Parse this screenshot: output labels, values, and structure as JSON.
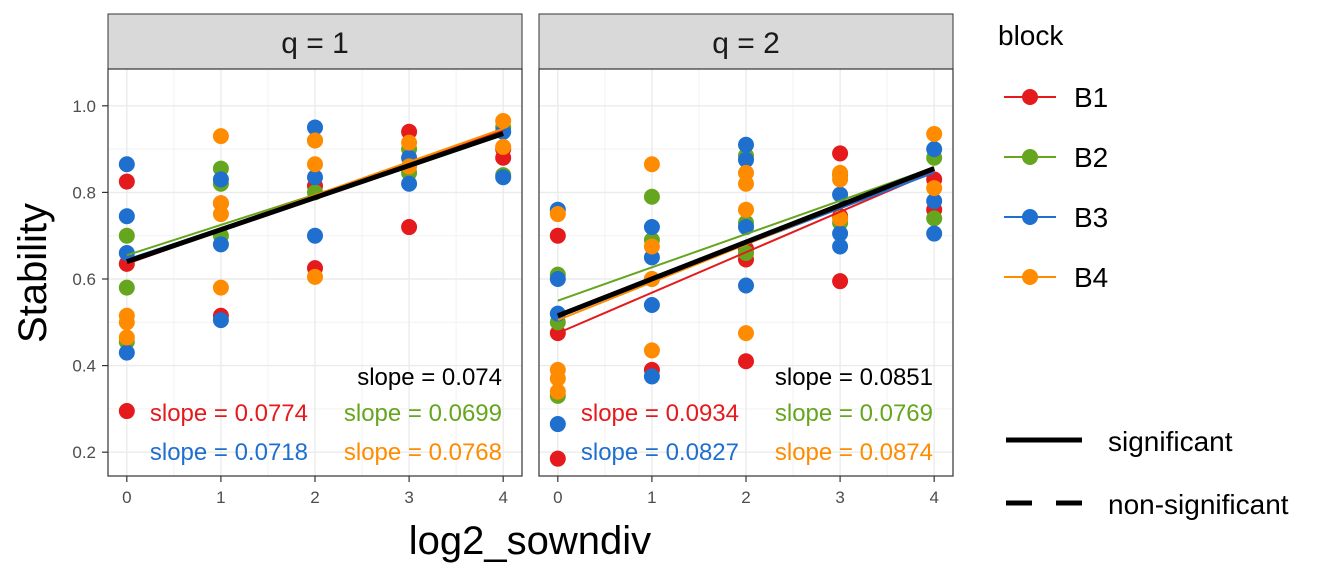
{
  "chart_data": {
    "type": "scatter",
    "xlabel": "log2_sowndiv",
    "ylabel": "Stability",
    "xlim": [
      -0.2,
      4.2
    ],
    "ylim": [
      0.145,
      1.085
    ],
    "x_ticks": [
      0,
      1,
      2,
      3,
      4
    ],
    "y_ticks": [
      0.2,
      0.4,
      0.6,
      0.8,
      1.0
    ],
    "x_tick_labels": [
      "0",
      "1",
      "2",
      "3",
      "4"
    ],
    "y_tick_labels": [
      "0.2",
      "0.4",
      "0.6",
      "0.8",
      "1.0"
    ],
    "grid": true,
    "legend": {
      "position": "right",
      "title": "block",
      "entries": [
        {
          "name": "B1",
          "color": "#e41a1c"
        },
        {
          "name": "B2",
          "color": "#66a61e"
        },
        {
          "name": "B3",
          "color": "#1f6fcf"
        },
        {
          "name": "B4",
          "color": "#ff8c00"
        }
      ],
      "linetype_entries": [
        "significant",
        "non-significant"
      ]
    },
    "panels": [
      {
        "strip": "q = 1",
        "overall": {
          "slope_label": "slope = 0.074",
          "intercept": 0.64,
          "slope": 0.074
        },
        "series": [
          {
            "block": "B1",
            "slope_label": "slope = 0.0774",
            "intercept": 0.635,
            "slope": 0.0774,
            "points": [
              [
                0,
                0.825
              ],
              [
                0,
                0.635
              ],
              [
                0,
                0.295
              ],
              [
                1,
                0.775
              ],
              [
                1,
                0.515
              ],
              [
                2,
                0.815
              ],
              [
                2,
                0.625
              ],
              [
                3,
                0.94
              ],
              [
                3,
                0.72
              ],
              [
                4,
                0.9
              ],
              [
                4,
                0.88
              ]
            ]
          },
          {
            "block": "B2",
            "slope_label": "slope = 0.0699",
            "intercept": 0.655,
            "slope": 0.0699,
            "points": [
              [
                0,
                0.7
              ],
              [
                0,
                0.58
              ],
              [
                0,
                0.455
              ],
              [
                1,
                0.855
              ],
              [
                1,
                0.82
              ],
              [
                1,
                0.7
              ],
              [
                2,
                0.92
              ],
              [
                2,
                0.8
              ],
              [
                3,
                0.9
              ],
              [
                3,
                0.845
              ],
              [
                4,
                0.95
              ],
              [
                4,
                0.84
              ]
            ]
          },
          {
            "block": "B3",
            "slope_label": "slope = 0.0718",
            "intercept": 0.645,
            "slope": 0.0718,
            "points": [
              [
                0,
                0.865
              ],
              [
                0,
                0.745
              ],
              [
                0,
                0.66
              ],
              [
                0,
                0.43
              ],
              [
                1,
                0.83
              ],
              [
                1,
                0.68
              ],
              [
                1,
                0.505
              ],
              [
                2,
                0.95
              ],
              [
                2,
                0.835
              ],
              [
                2,
                0.7
              ],
              [
                3,
                0.88
              ],
              [
                3,
                0.82
              ],
              [
                4,
                0.94
              ],
              [
                4,
                0.835
              ]
            ]
          },
          {
            "block": "B4",
            "slope_label": "slope = 0.0768",
            "intercept": 0.64,
            "slope": 0.0768,
            "points": [
              [
                0,
                0.515
              ],
              [
                0,
                0.5
              ],
              [
                0,
                0.465
              ],
              [
                1,
                0.93
              ],
              [
                1,
                0.775
              ],
              [
                1,
                0.75
              ],
              [
                1,
                0.58
              ],
              [
                2,
                0.92
              ],
              [
                2,
                0.865
              ],
              [
                2,
                0.605
              ],
              [
                3,
                0.915
              ],
              [
                3,
                0.86
              ],
              [
                4,
                0.965
              ],
              [
                4,
                0.905
              ]
            ]
          }
        ]
      },
      {
        "strip": "q = 2",
        "overall": {
          "slope_label": "slope = 0.0851",
          "intercept": 0.515,
          "slope": 0.0851
        },
        "series": [
          {
            "block": "B1",
            "slope_label": "slope = 0.0934",
            "intercept": 0.475,
            "slope": 0.0934,
            "points": [
              [
                0,
                0.7
              ],
              [
                0,
                0.475
              ],
              [
                0,
                0.185
              ],
              [
                1,
                0.39
              ],
              [
                2,
                0.67
              ],
              [
                2,
                0.645
              ],
              [
                2,
                0.41
              ],
              [
                3,
                0.89
              ],
              [
                3,
                0.745
              ],
              [
                3,
                0.595
              ],
              [
                4,
                0.83
              ],
              [
                4,
                0.76
              ]
            ]
          },
          {
            "block": "B2",
            "slope_label": "slope = 0.0769",
            "intercept": 0.55,
            "slope": 0.0769,
            "points": [
              [
                0,
                0.61
              ],
              [
                0,
                0.5
              ],
              [
                0,
                0.33
              ],
              [
                1,
                0.79
              ],
              [
                1,
                0.69
              ],
              [
                1,
                0.6
              ],
              [
                2,
                0.885
              ],
              [
                2,
                0.73
              ],
              [
                2,
                0.66
              ],
              [
                3,
                0.84
              ],
              [
                3,
                0.73
              ],
              [
                4,
                0.88
              ],
              [
                4,
                0.74
              ]
            ]
          },
          {
            "block": "B3",
            "slope_label": "slope = 0.0827",
            "intercept": 0.515,
            "slope": 0.0827,
            "points": [
              [
                0,
                0.76
              ],
              [
                0,
                0.6
              ],
              [
                0,
                0.52
              ],
              [
                0,
                0.265
              ],
              [
                1,
                0.72
              ],
              [
                1,
                0.65
              ],
              [
                1,
                0.54
              ],
              [
                1,
                0.375
              ],
              [
                2,
                0.91
              ],
              [
                2,
                0.875
              ],
              [
                2,
                0.72
              ],
              [
                2,
                0.585
              ],
              [
                3,
                0.795
              ],
              [
                3,
                0.705
              ],
              [
                3,
                0.675
              ],
              [
                4,
                0.9
              ],
              [
                4,
                0.78
              ],
              [
                4,
                0.705
              ]
            ]
          },
          {
            "block": "B4",
            "slope_label": "slope = 0.0874",
            "intercept": 0.505,
            "slope": 0.0874,
            "points": [
              [
                0,
                0.75
              ],
              [
                0,
                0.39
              ],
              [
                0,
                0.37
              ],
              [
                0,
                0.34
              ],
              [
                1,
                0.865
              ],
              [
                1,
                0.675
              ],
              [
                1,
                0.6
              ],
              [
                1,
                0.435
              ],
              [
                2,
                0.845
              ],
              [
                2,
                0.82
              ],
              [
                2,
                0.76
              ],
              [
                2,
                0.475
              ],
              [
                3,
                0.845
              ],
              [
                3,
                0.83
              ],
              [
                3,
                0.74
              ],
              [
                4,
                0.935
              ],
              [
                4,
                0.81
              ]
            ]
          }
        ]
      }
    ]
  }
}
